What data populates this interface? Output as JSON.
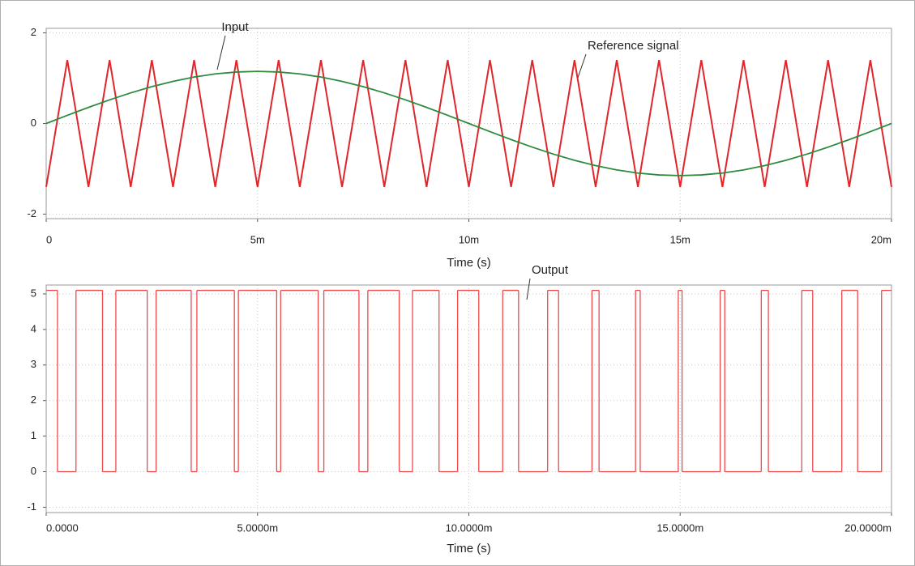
{
  "chart_data": [
    {
      "type": "line",
      "x": [
        0,
        0.0005,
        0.001,
        0.0015,
        0.002,
        0.0025,
        0.003,
        0.0035,
        0.004,
        0.0045,
        0.005,
        0.0055,
        0.006,
        0.0065,
        0.007,
        0.0075,
        0.008,
        0.0085,
        0.009,
        0.0095,
        0.01,
        0.0105,
        0.011,
        0.0115,
        0.012,
        0.0125,
        0.013,
        0.0135,
        0.014,
        0.0145,
        0.015,
        0.0155,
        0.016,
        0.0165,
        0.017,
        0.0175,
        0.018,
        0.0185,
        0.019,
        0.0195,
        0.02
      ],
      "series": [
        {
          "name": "Input",
          "color": "#e0262a",
          "values": [
            -1.4,
            1.4,
            -1.4,
            1.4,
            -1.4,
            1.4,
            -1.4,
            1.4,
            -1.4,
            1.4,
            -1.4,
            1.4,
            -1.4,
            1.4,
            -1.4,
            1.4,
            -1.4,
            1.4,
            -1.4,
            1.4,
            -1.4,
            1.4,
            -1.4,
            1.4,
            -1.4,
            1.4,
            -1.4,
            1.4,
            -1.4,
            1.4,
            -1.4,
            1.4,
            -1.4,
            1.4,
            -1.4,
            1.4,
            -1.4,
            1.4,
            -1.4,
            1.4,
            -1.4
          ]
        },
        {
          "name": "Reference signal",
          "color": "#2e8b3e",
          "values": [
            0,
            0.18,
            0.355,
            0.522,
            0.676,
            0.813,
            0.93,
            1.025,
            1.094,
            1.136,
            1.15,
            1.136,
            1.094,
            1.025,
            0.93,
            0.813,
            0.676,
            0.522,
            0.355,
            0.18,
            0,
            -0.18,
            -0.355,
            -0.522,
            -0.676,
            -0.813,
            -0.93,
            -1.025,
            -1.094,
            -1.136,
            -1.15,
            -1.136,
            -1.094,
            -1.025,
            -0.93,
            -0.813,
            -0.676,
            -0.522,
            -0.355,
            -0.18,
            0
          ]
        }
      ],
      "xlim": [
        0,
        0.02
      ],
      "ylim": [
        -2.1,
        2.1
      ],
      "xticks": [
        0,
        {
          "value": 0.005,
          "label": "5m"
        },
        {
          "value": 0.01,
          "label": "10m"
        },
        {
          "value": 0.015,
          "label": "15m"
        },
        {
          "value": 0.02,
          "label": "20m"
        }
      ],
      "yticks": [
        -2,
        0,
        2
      ],
      "xlabel": "Time (s)",
      "grid": true
    },
    {
      "type": "step",
      "series": [
        {
          "name": "Output",
          "color": "#ec4a4a",
          "x": [
            0,
            0.000267,
            0.000705,
            0.001333,
            0.001648,
            0.00239,
            0.0026,
            0.003431,
            0.003565,
            0.004452,
            0.004547,
            0.005453,
            0.005548,
            0.006435,
            0.006569,
            0.0074,
            0.00761,
            0.008352,
            0.008667,
            0.009295,
            0.009733,
            0.010235,
            0.010801,
            0.011176,
            0.011864,
            0.012123,
            0.012913,
            0.013081,
            0.013944,
            0.014054,
            0.014955,
            0.015045,
            0.015946,
            0.016056,
            0.016919,
            0.017087,
            0.017877,
            0.018136,
            0.018824,
            0.019199,
            0.019765,
            0.02
          ],
          "values": [
            5.1,
            0,
            5.1,
            0,
            5.1,
            0,
            5.1,
            0,
            5.1,
            0,
            5.1,
            0,
            5.1,
            0,
            5.1,
            0,
            5.1,
            0,
            5.1,
            0,
            5.1,
            0,
            5.1,
            0,
            5.1,
            0,
            5.1,
            0,
            5.1,
            0,
            5.1,
            0,
            5.1,
            0,
            5.1,
            0,
            5.1,
            0,
            5.1,
            0,
            5.1,
            5.1
          ]
        }
      ],
      "xlim": [
        0,
        0.02
      ],
      "ylim": [
        -1.15,
        5.25
      ],
      "xticks": [
        {
          "value": 0,
          "label": "0.0000"
        },
        {
          "value": 0.005,
          "label": "5.0000m"
        },
        {
          "value": 0.01,
          "label": "10.0000m"
        },
        {
          "value": 0.015,
          "label": "15.0000m"
        },
        {
          "value": 0.02,
          "label": "20.0000m"
        }
      ],
      "yticks": [
        -1,
        0,
        1,
        2,
        3,
        4,
        5
      ],
      "xlabel": "Time (s)",
      "grid": true
    }
  ]
}
